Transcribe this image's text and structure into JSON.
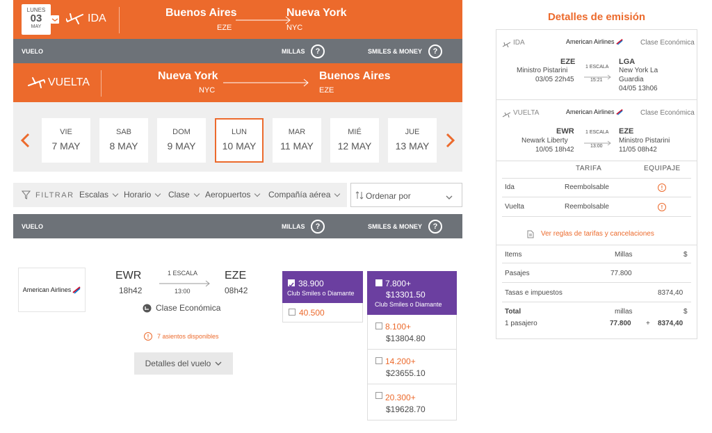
{
  "ida": {
    "weekday": "LUNES",
    "day": "03",
    "month": "MAY",
    "label": "IDA",
    "from_city": "Buenos Aires",
    "from_code": "EZE",
    "to_city": "Nueva York",
    "to_code": "NYC"
  },
  "col_header": {
    "vuelo": "VUELO",
    "millas": "MILLAS",
    "smiles_money": "SMILES & MONEY",
    "help": "?"
  },
  "vuelta": {
    "label": "VUELTA",
    "from_city": "Nueva York",
    "from_code": "NYC",
    "to_city": "Buenos Aires",
    "to_code": "EZE"
  },
  "dates": [
    {
      "name": "VIE",
      "date": "7 MAY"
    },
    {
      "name": "SAB",
      "date": "8 MAY"
    },
    {
      "name": "DOM",
      "date": "9 MAY"
    },
    {
      "name": "LUN",
      "date": "10 MAY"
    },
    {
      "name": "MAR",
      "date": "11 MAY"
    },
    {
      "name": "MIÉ",
      "date": "12 MAY"
    },
    {
      "name": "JUE",
      "date": "13 MAY"
    }
  ],
  "filters": {
    "label": "FILTRAR",
    "items": [
      "Escalas",
      "Horario",
      "Clase",
      "Aeropuertos",
      "Compañía aérea"
    ],
    "sort": "Ordenar por"
  },
  "flight": {
    "airline": "American Airlines",
    "from_code": "EWR",
    "from_time": "18h42",
    "stops": "1 ESCALA",
    "duration": "13:00",
    "to_code": "EZE",
    "to_time": "08h42",
    "class": "Clase Económica",
    "seats": "7 asientos disponibles",
    "details": "Detalles del vuelo"
  },
  "miles_options": [
    {
      "miles": "38.900",
      "note": "Club Smiles o Diamante"
    },
    {
      "miles": "40.500"
    }
  ],
  "money_options": [
    {
      "miles": "7.800+",
      "money": "$13301.50",
      "note": "Club Smiles o Diamante"
    },
    {
      "miles": "8.100+",
      "money": "$13804.80"
    },
    {
      "miles": "14.200+",
      "money": "$23655.10"
    },
    {
      "miles": "20.300+",
      "money": "$19628.70"
    }
  ],
  "summary": {
    "title": "Detalles de emisión",
    "ida": {
      "label": "IDA",
      "airline": "American Airlines",
      "class": "Clase Económica",
      "from_code": "EZE",
      "from_name": "Ministro Pistarini",
      "from_dt": "03/05 22h45",
      "stops": "1 ESCALA",
      "duration": "15:21",
      "to_code": "LGA",
      "to_name1": "New York La",
      "to_name2": "Guardia",
      "to_dt": "04/05 13h06"
    },
    "vuelta": {
      "label": "VUELTA",
      "airline": "American Airlines",
      "class": "Clase Económica",
      "from_code": "EWR",
      "from_name": "Newark Liberty",
      "from_dt": "10/05 18h42",
      "stops": "1 ESCALA",
      "duration": "13:00",
      "to_code": "EZE",
      "to_name": "Ministro Pistarini",
      "to_dt": "11/05 08h42"
    },
    "tarifa_header": "TARIFA",
    "equipaje_header": "EQUIPAJE",
    "rows": [
      {
        "leg": "Ida",
        "tarifa": "Reembolsable"
      },
      {
        "leg": "Vuelta",
        "tarifa": "Reembolsable"
      }
    ],
    "rules_link": "Ver reglas de tarifas y cancelaciones",
    "price_header": {
      "items": "Items",
      "millas": "Millas",
      "money": "$"
    },
    "pasajes": {
      "label": "Pasajes",
      "millas": "77.800"
    },
    "tasas": {
      "label": "Tasas e impuestos",
      "money": "8374,40"
    },
    "total": {
      "label": "Total",
      "millas_label": "millas",
      "money_label": "$",
      "pax": "1 pasajero",
      "millas": "77.800",
      "plus": "+",
      "money": "8374,40"
    }
  },
  "colors": {
    "accent": "#ec6a2c",
    "header_gray": "#6d7278",
    "purple": "#6b3fa0"
  }
}
